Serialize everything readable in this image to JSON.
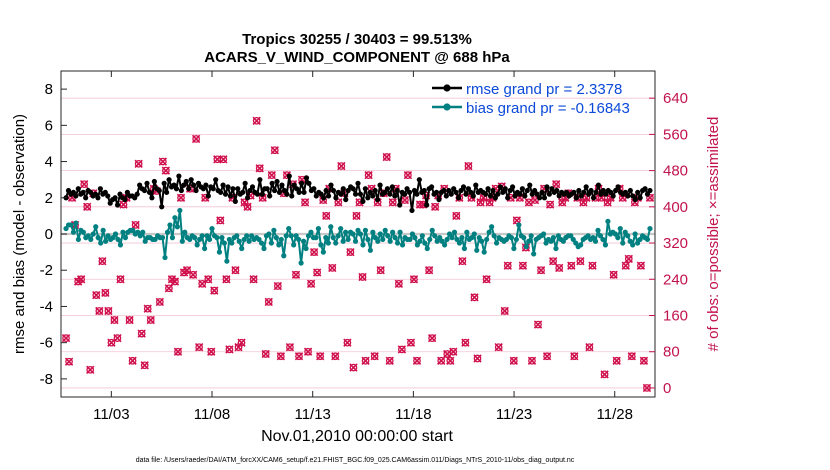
{
  "chart_data": {
    "type": "line",
    "title_line1": "Tropics 30255 / 30403 = 99.513%",
    "title_line2": "ACARS_V_WIND_COMPONENT @ 688 hPa",
    "xlabel": "Nov.01,2010 00:00:00 start",
    "ylabel_left": "rmse and bias (model - observation)",
    "ylabel_right": "# of obs: o=possible; ×=assimilated",
    "footnote": "data file: /Users/raeder/DAI/ATM_forcXX/CAM6_setup/f.e21.FHIST_BGC.f09_025.CAM6assim.011/Diags_NTrS_2010-11/obs_diag_output.nc",
    "xlim": [
      0.5,
      30.0
    ],
    "ylim_left": [
      -9,
      9
    ],
    "ylim_right": [
      -20,
      700
    ],
    "x_ticks": [
      3,
      8,
      13,
      18,
      23,
      28
    ],
    "x_tick_labels": [
      "11/03",
      "11/08",
      "11/13",
      "11/18",
      "11/23",
      "11/28"
    ],
    "y_ticks_left": [
      -8,
      -6,
      -4,
      -2,
      0,
      2,
      4,
      6,
      8
    ],
    "y_tick_labels_left": [
      "-8",
      "-6",
      "-4",
      "-2",
      "0",
      "2",
      "4",
      "6",
      "8"
    ],
    "y_ticks_right": [
      0,
      80,
      160,
      240,
      320,
      400,
      480,
      560,
      640
    ],
    "y_tick_labels_right": [
      "0",
      "80",
      "160",
      "240",
      "320",
      "400",
      "480",
      "560",
      "640"
    ],
    "series": [
      {
        "name": "rmse grand pr = 2.3378",
        "color": "#000000",
        "y": [
          2.0,
          2.4,
          2.2,
          2.3,
          2.1,
          2.5,
          2.2,
          2.3,
          2.0,
          2.4,
          2.3,
          2.1,
          2.2,
          2.0,
          2.5,
          2.2,
          2.3,
          2.1,
          1.7,
          1.9,
          2.0,
          1.6,
          2.2,
          2.0,
          1.9,
          2.3,
          2.1,
          2.1,
          2.0,
          2.2,
          2.7,
          2.5,
          2.4,
          2.8,
          2.3,
          2.0,
          2.9,
          2.5,
          2.4,
          1.5,
          2.8,
          2.3,
          3.0,
          2.6,
          2.7,
          2.5,
          3.2,
          2.4,
          2.7,
          2.9,
          2.5,
          3.0,
          2.7,
          2.4,
          2.8,
          2.6,
          2.5,
          2.7,
          2.1,
          2.6,
          2.5,
          3.0,
          2.4,
          2.3,
          2.7,
          2.2,
          2.6,
          2.1,
          2.5,
          1.8,
          2.5,
          2.2,
          2.3,
          2.8,
          2.0,
          2.4,
          2.6,
          2.3,
          2.2,
          3.0,
          2.2,
          2.5,
          2.5,
          2.1,
          2.8,
          2.4,
          2.9,
          2.3,
          2.7,
          2.4,
          2.2,
          3.2,
          2.1,
          2.7,
          2.5,
          2.3,
          2.8,
          2.3,
          3.1,
          2.8,
          2.4,
          2.5,
          2.1,
          2.3,
          2.2,
          2.0,
          2.4,
          2.1,
          2.7,
          2.4,
          2.0,
          2.3,
          2.2,
          2.5,
          1.9,
          2.4,
          2.6,
          2.5,
          2.2,
          2.8,
          2.2,
          1.8,
          2.5,
          2.0,
          2.3,
          2.1,
          2.4,
          1.9,
          2.7,
          2.2,
          2.3,
          2.5,
          2.2,
          2.6,
          2.1,
          2.4,
          1.6,
          2.3,
          2.2,
          2.5,
          2.3,
          1.3,
          2.4,
          2.2,
          3.0,
          2.3,
          2.4,
          1.6,
          2.5,
          2.6,
          2.2,
          2.3,
          1.9,
          2.3,
          2.4,
          2.1,
          2.4,
          2.2,
          2.5,
          2.3,
          2.0,
          2.4,
          2.6,
          2.2,
          2.5,
          2.3,
          2.1,
          2.7,
          2.3,
          2.4,
          2.3,
          2.2,
          2.5,
          2.1,
          2.4,
          2.0,
          2.2,
          2.6,
          2.3,
          2.5,
          2.0,
          2.4,
          2.6,
          2.1,
          2.3,
          2.2,
          2.5,
          2.1,
          2.4,
          2.7,
          2.2,
          2.4,
          2.2,
          2.0,
          2.3,
          2.0,
          2.6,
          2.2,
          2.5,
          2.3,
          2.4,
          2.1,
          2.3,
          2.2,
          2.3,
          2.1,
          2.2,
          2.3,
          2.0,
          2.4,
          2.1,
          2.3,
          2.6,
          2.2,
          2.4,
          2.0,
          2.3,
          2.7,
          2.2,
          2.4,
          2.2,
          2.4,
          2.3,
          2.1,
          2.4,
          2.6,
          2.3,
          2.2,
          2.3,
          2.1,
          2.4,
          2.1,
          1.9,
          2.3,
          2.0,
          2.4,
          2.5,
          2.2,
          2.4
        ]
      },
      {
        "name": "bias grand pr = -0.16843",
        "color": "#008080",
        "y": [
          0.3,
          0.5,
          0.5,
          0.1,
          0.6,
          -0.3,
          0.2,
          0.1,
          -0.2,
          -0.1,
          -0.3,
          0.0,
          0.4,
          -0.2,
          -0.5,
          0.2,
          -0.4,
          -0.1,
          -0.3,
          -0.2,
          0.0,
          -0.3,
          -0.6,
          0.1,
          -0.2,
          0.1,
          0.2,
          0.2,
          0.0,
          0.1,
          -0.1,
          0.1,
          -0.4,
          -0.2,
          -0.2,
          -0.3,
          -0.3,
          -0.1,
          -0.2,
          -0.2,
          -1.3,
          0.1,
          0.5,
          -0.2,
          0.9,
          0.4,
          1.3,
          -0.4,
          0.1,
          -0.2,
          -0.3,
          -0.1,
          -0.2,
          -0.6,
          -0.3,
          -0.1,
          -0.8,
          -0.1,
          -0.3,
          0.3,
          -0.1,
          -0.2,
          -1.0,
          -0.2,
          -0.5,
          -1.5,
          -0.3,
          -0.5,
          -0.2,
          -0.1,
          -0.4,
          -0.8,
          -0.3,
          -0.1,
          -0.4,
          -0.1,
          -0.3,
          -0.2,
          -0.3,
          -0.5,
          -0.8,
          -0.1,
          0.0,
          -0.5,
          0.2,
          -0.2,
          -0.6,
          -0.3,
          -1.2,
          -0.1,
          0.3,
          -0.1,
          -0.6,
          -0.1,
          -0.3,
          -1.6,
          -0.4,
          -0.8,
          -0.1,
          0.1,
          -0.2,
          -0.2,
          0.3,
          -0.6,
          -1.0,
          -0.2,
          -0.5,
          0.4,
          -0.2,
          -0.5,
          -0.1,
          0.3,
          -0.4,
          0.1,
          -0.3,
          0.1,
          0.0,
          -0.4,
          0.2,
          0.0,
          -0.6,
          0.2,
          -0.3,
          -0.9,
          0.1,
          -0.2,
          -0.4,
          0.0,
          -0.3,
          0.2,
          -0.1,
          -0.4,
          0.1,
          -0.2,
          -0.5,
          0.1,
          -0.6,
          -0.2,
          -0.3,
          -0.3,
          0.0,
          -0.2,
          -0.6,
          -0.4,
          -0.1,
          -0.5,
          -0.8,
          -0.3,
          0.2,
          -0.1,
          -0.4,
          -0.2,
          -0.4,
          -0.6,
          -0.3,
          0.0,
          -0.2,
          0.1,
          -0.3,
          -0.5,
          -0.2,
          -0.8,
          0.1,
          -0.3,
          -0.2,
          0.0,
          -0.9,
          -0.2,
          -0.4,
          -1.0,
          -0.3,
          0.1,
          0.4,
          -0.1,
          -0.5,
          -0.2,
          -0.3,
          -0.4,
          -0.3,
          -0.1,
          -0.2,
          -0.8,
          -0.3,
          0.5,
          -0.1,
          -0.2,
          -0.7,
          -0.4,
          -0.1,
          -1.1,
          -0.3,
          -0.2,
          -0.1,
          0.0,
          -0.5,
          -0.3,
          -0.4,
          -0.2,
          -0.8,
          -0.1,
          -0.3,
          -0.4,
          -0.2,
          -0.1,
          -0.1,
          -0.3,
          -0.5,
          -0.7,
          -0.6,
          -0.3,
          -0.2,
          -0.1,
          -0.3,
          -0.2,
          -0.4,
          0.2,
          -0.1,
          -0.3,
          -0.6,
          0.7,
          0.0,
          0.1,
          0.0,
          -0.2,
          0.3,
          -0.5,
          0.1,
          -0.1,
          -0.4,
          -0.6,
          0.0,
          -0.5,
          -0.3,
          -0.1,
          -0.2,
          -0.3,
          0.3
        ]
      }
    ],
    "obs_counts": [
      110,
      58,
      420,
      360,
      235,
      240,
      450,
      400,
      40,
      430,
      205,
      170,
      280,
      210,
      170,
      100,
      150,
      110,
      240,
      405,
      420,
      150,
      60,
      360,
      495,
      120,
      50,
      175,
      150,
      440,
      435,
      190,
      500,
      480,
      220,
      240,
      235,
      80,
      420,
      255,
      260,
      440,
      250,
      550,
      90,
      230,
      420,
      240,
      80,
      215,
      505,
      370,
      505,
      240,
      85,
      420,
      260,
      90,
      100,
      410,
      400,
      425,
      240,
      590,
      485,
      420,
      75,
      190,
      470,
      525,
      225,
      70,
      430,
      470,
      90,
      450,
      250,
      70,
      460,
      410,
      80,
      230,
      300,
      255,
      70,
      415,
      380,
      440,
      265,
      70,
      410,
      490,
      430,
      100,
      300,
      45,
      380,
      410,
      245,
      60,
      470,
      440,
      70,
      410,
      260,
      430,
      510,
      60,
      410,
      440,
      230,
      85,
      415,
      470,
      100,
      240,
      60,
      405,
      405,
      425,
      260,
      110,
      400,
      425,
      60,
      440,
      75,
      60,
      80,
      380,
      420,
      280,
      100,
      490,
      420,
      200,
      65,
      410,
      420,
      240,
      410,
      420,
      440,
      90,
      445,
      170,
      270,
      420,
      60,
      370,
      420,
      270,
      310,
      410,
      60,
      415,
      140,
      260,
      440,
      70,
      405,
      280,
      450,
      265,
      410,
      420,
      430,
      270,
      70,
      420,
      280,
      410,
      420,
      90,
      270,
      420,
      440,
      420,
      30,
      410,
      420,
      250,
      60,
      440,
      420,
      270,
      285,
      70,
      410,
      420,
      270,
      60,
      0,
      420
    ]
  },
  "legend": {
    "rmse_label": "rmse grand pr = 2.3378",
    "bias_label": "bias grand pr = -0.16843",
    "label_color": "#0b4ad9"
  },
  "colors": {
    "rmse": "#000000",
    "bias": "#008080",
    "obs": "#d0104c",
    "zero_line": "#c8c8c8",
    "grid": "#f2c4d2",
    "right_axis": "#c2134e"
  }
}
